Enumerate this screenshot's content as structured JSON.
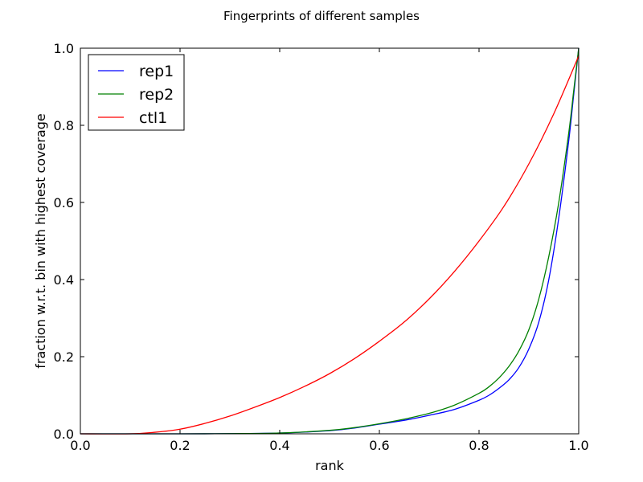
{
  "chart_data": {
    "type": "line",
    "title": "Fingerprints of different samples",
    "xlabel": "rank",
    "ylabel": "fraction w.r.t. bin with highest coverage",
    "xlim": [
      0.0,
      1.0
    ],
    "ylim": [
      0.0,
      1.0
    ],
    "xticks": [
      0.0,
      0.2,
      0.4,
      0.6,
      0.8,
      1.0
    ],
    "yticks": [
      0.0,
      0.2,
      0.4,
      0.6,
      0.8,
      1.0
    ],
    "xtick_labels": [
      "0.0",
      "0.2",
      "0.4",
      "0.6",
      "0.8",
      "1.0"
    ],
    "ytick_labels": [
      "0.0",
      "0.2",
      "0.4",
      "0.6",
      "0.8",
      "1.0"
    ],
    "grid": false,
    "legend_position": "top-left",
    "series": [
      {
        "name": "rep1",
        "color": "#0000ff",
        "x": [
          0.0,
          0.2,
          0.3,
          0.4,
          0.5,
          0.55,
          0.6,
          0.65,
          0.7,
          0.75,
          0.8,
          0.82,
          0.84,
          0.86,
          0.88,
          0.9,
          0.92,
          0.94,
          0.96,
          0.98,
          0.99,
          1.0
        ],
        "y": [
          0.0,
          0.0,
          0.0005,
          0.002,
          0.008,
          0.015,
          0.025,
          0.035,
          0.048,
          0.063,
          0.087,
          0.1,
          0.118,
          0.14,
          0.172,
          0.22,
          0.29,
          0.4,
          0.56,
          0.76,
          0.88,
          1.0
        ]
      },
      {
        "name": "rep2",
        "color": "#008000",
        "x": [
          0.0,
          0.2,
          0.3,
          0.4,
          0.5,
          0.55,
          0.6,
          0.65,
          0.7,
          0.75,
          0.8,
          0.82,
          0.84,
          0.86,
          0.88,
          0.9,
          0.92,
          0.94,
          0.96,
          0.98,
          0.99,
          1.0
        ],
        "y": [
          0.0,
          0.0,
          0.0005,
          0.002,
          0.009,
          0.016,
          0.026,
          0.038,
          0.053,
          0.074,
          0.105,
          0.122,
          0.145,
          0.175,
          0.215,
          0.27,
          0.35,
          0.46,
          0.6,
          0.78,
          0.89,
          1.0
        ]
      },
      {
        "name": "ctl1",
        "color": "#ff0000",
        "x": [
          0.0,
          0.1,
          0.15,
          0.2,
          0.25,
          0.3,
          0.35,
          0.4,
          0.45,
          0.5,
          0.55,
          0.6,
          0.65,
          0.7,
          0.75,
          0.8,
          0.85,
          0.9,
          0.95,
          1.0
        ],
        "y": [
          0.0,
          0.0,
          0.004,
          0.012,
          0.027,
          0.046,
          0.069,
          0.094,
          0.123,
          0.156,
          0.195,
          0.24,
          0.29,
          0.35,
          0.42,
          0.5,
          0.59,
          0.7,
          0.83,
          0.98
        ]
      }
    ]
  }
}
